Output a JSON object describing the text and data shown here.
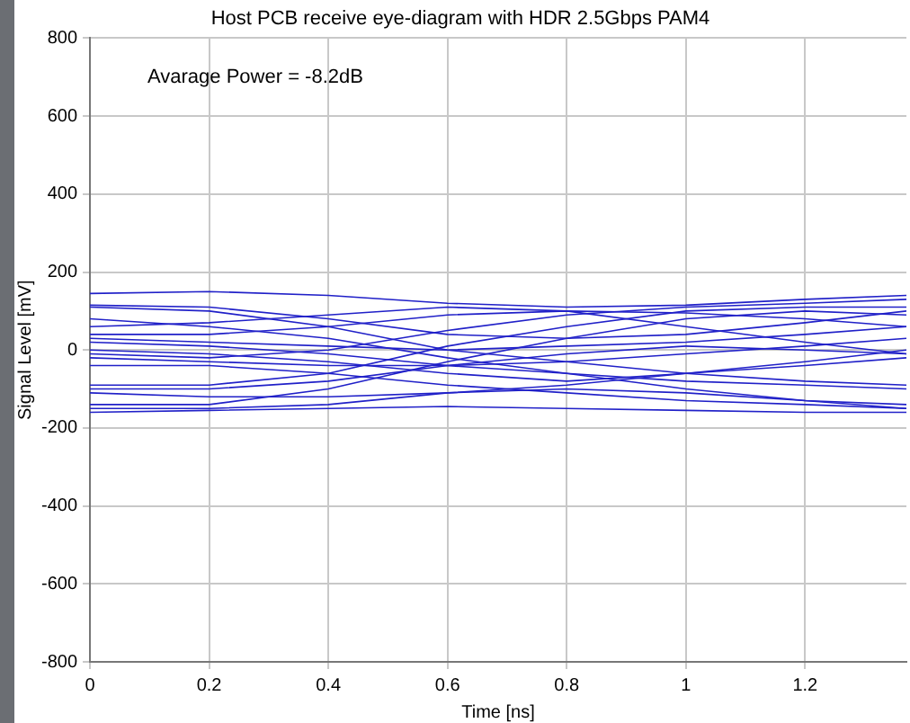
{
  "chart_data": {
    "type": "line",
    "title": "Host PCB receive eye-diagram with HDR 2.5Gbps PAM4",
    "xlabel": "Time [ns]",
    "ylabel": "Signal Level [mV]",
    "annotations": [
      "Avarage Power = -8.2dB"
    ],
    "x": [
      0,
      0.2,
      0.4,
      0.6,
      0.8,
      1.0,
      1.2,
      1.37
    ],
    "xlim": [
      0,
      1.37
    ],
    "xticks": [
      0,
      0.2,
      0.4,
      0.6,
      0.8,
      1,
      1.2
    ],
    "ylim": [
      -800,
      800
    ],
    "yticks": [
      -800,
      -600,
      -400,
      -200,
      0,
      200,
      400,
      600,
      800
    ],
    "grid": true,
    "legend": false,
    "marker": "none",
    "line_style": "solid",
    "series": [
      {
        "color": "#2020c8",
        "values": [
          145,
          150,
          140,
          120,
          110,
          115,
          130,
          140
        ]
      },
      {
        "color": "#2020c8",
        "values": [
          115,
          110,
          80,
          40,
          30,
          40,
          70,
          100
        ]
      },
      {
        "color": "#2020c8",
        "values": [
          110,
          100,
          60,
          0,
          -30,
          -60,
          -80,
          -90
        ]
      },
      {
        "color": "#2020c8",
        "values": [
          80,
          60,
          30,
          -20,
          -60,
          -100,
          -130,
          -150
        ]
      },
      {
        "color": "#2020c8",
        "values": [
          40,
          40,
          60,
          90,
          100,
          95,
          80,
          60
        ]
      },
      {
        "color": "#2020c8",
        "values": [
          30,
          20,
          10,
          0,
          10,
          20,
          40,
          60
        ]
      },
      {
        "color": "#2020c8",
        "values": [
          20,
          10,
          -10,
          -40,
          -60,
          -80,
          -90,
          -100
        ]
      },
      {
        "color": "#2020c8",
        "values": [
          -10,
          -20,
          0,
          50,
          90,
          110,
          120,
          130
        ]
      },
      {
        "color": "#2020c8",
        "values": [
          -20,
          -30,
          -40,
          -40,
          -30,
          -10,
          10,
          30
        ]
      },
      {
        "color": "#2020c8",
        "values": [
          -40,
          -40,
          -60,
          -90,
          -110,
          -130,
          -140,
          -150
        ]
      },
      {
        "color": "#2020c8",
        "values": [
          -90,
          -90,
          -60,
          10,
          60,
          100,
          110,
          110
        ]
      },
      {
        "color": "#2020c8",
        "values": [
          -100,
          -100,
          -80,
          -40,
          -10,
          10,
          0,
          -10
        ]
      },
      {
        "color": "#2020c8",
        "values": [
          -110,
          -120,
          -120,
          -110,
          -100,
          -110,
          -130,
          -140
        ]
      },
      {
        "color": "#2020c8",
        "values": [
          -140,
          -140,
          -100,
          -30,
          30,
          80,
          100,
          90
        ]
      },
      {
        "color": "#2020c8",
        "values": [
          -150,
          -150,
          -140,
          -110,
          -90,
          -60,
          -40,
          -20
        ]
      },
      {
        "color": "#2020c8",
        "values": [
          -160,
          -155,
          -150,
          -145,
          -150,
          -155,
          -160,
          -160
        ]
      },
      {
        "color": "#2020c8",
        "values": [
          60,
          70,
          90,
          110,
          100,
          60,
          20,
          -10
        ]
      },
      {
        "color": "#2020c8",
        "values": [
          0,
          -10,
          -30,
          -60,
          -80,
          -60,
          -30,
          0
        ]
      }
    ]
  }
}
